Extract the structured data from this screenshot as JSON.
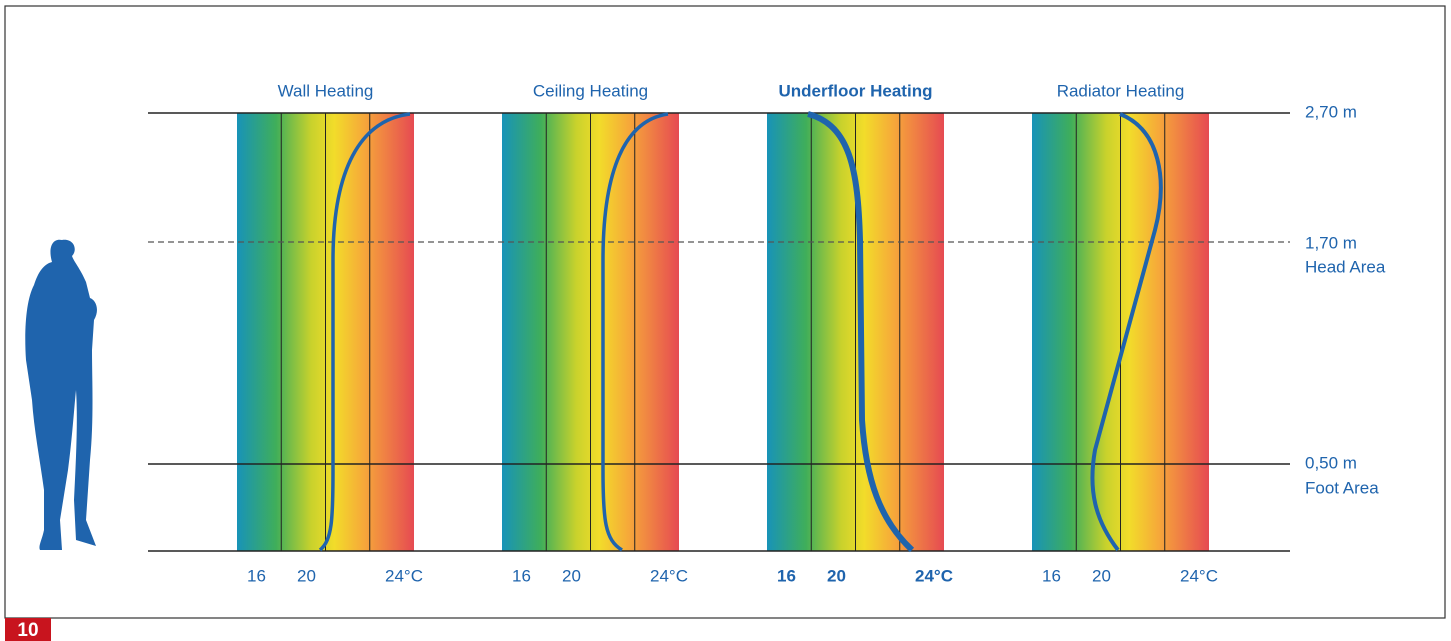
{
  "figure_number": "10",
  "panels": [
    {
      "title": "Wall Heating",
      "axis_labels": [
        "16",
        "20",
        "24°C"
      ]
    },
    {
      "title": "Ceiling Heating",
      "axis_labels": [
        "16",
        "20",
        "24°C"
      ]
    },
    {
      "title": "Underfloor Heating",
      "axis_labels": [
        "16",
        "20",
        "24°C"
      ]
    },
    {
      "title": "Radiator Heating",
      "axis_labels": [
        "16",
        "20",
        "24°C"
      ]
    }
  ],
  "height_labels": [
    {
      "height": "2,70 m"
    },
    {
      "height": "1,70 m",
      "area": "Head Area"
    },
    {
      "height": "0,50 m",
      "area": "Foot Area"
    }
  ]
}
